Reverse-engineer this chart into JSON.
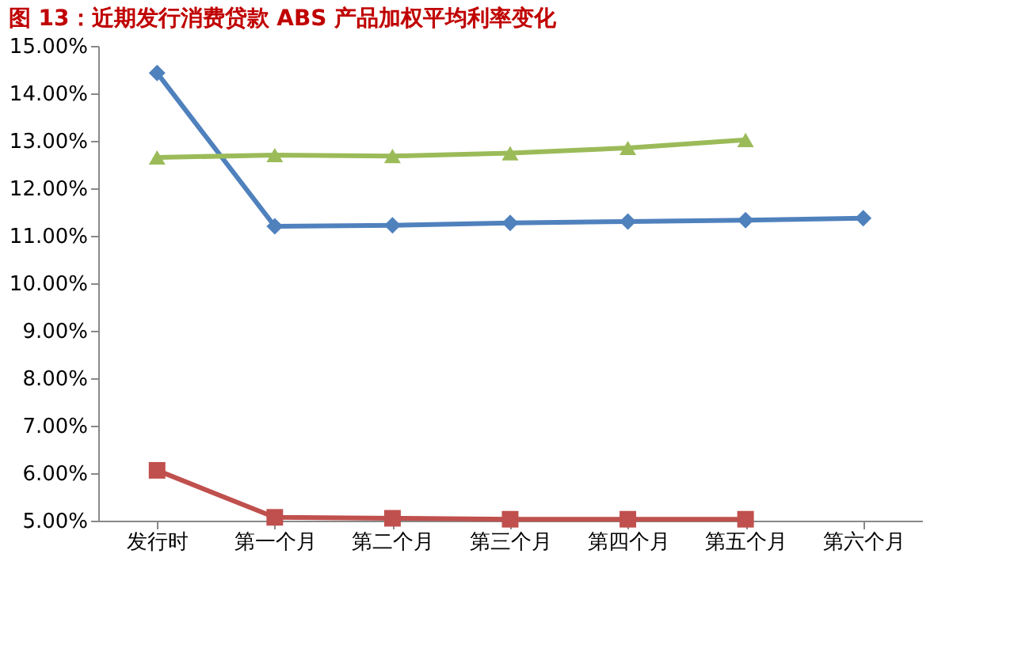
{
  "chart_data": {
    "type": "line",
    "title": "图 13：近期发行消费贷款 ABS 产品加权平均利率变化",
    "categories": [
      "发行时",
      "第一个月",
      "第二个月",
      "第三个月",
      "第四个月",
      "第五个月",
      "第六个月"
    ],
    "series": [
      {
        "color": "#4f81bd",
        "marker": "diamond",
        "values": [
          14.43,
          11.2,
          11.22,
          11.27,
          11.3,
          11.33,
          11.37
        ]
      },
      {
        "color": "#c0504d",
        "marker": "square",
        "values": [
          6.06,
          5.07,
          5.05,
          5.03,
          5.03,
          5.03,
          null
        ]
      },
      {
        "color": "#9bbb59",
        "marker": "triangle",
        "values": [
          12.65,
          12.7,
          12.68,
          12.74,
          12.85,
          13.02,
          null
        ]
      }
    ],
    "ylim": [
      5,
      15
    ],
    "yticks": [
      {
        "value": 5,
        "label": "5.00%"
      },
      {
        "value": 6,
        "label": "6.00%"
      },
      {
        "value": 7,
        "label": "7.00%"
      },
      {
        "value": 8,
        "label": "8.00%"
      },
      {
        "value": 9,
        "label": "9.00%"
      },
      {
        "value": 10,
        "label": "10.00%"
      },
      {
        "value": 11,
        "label": "11.00%"
      },
      {
        "value": 12,
        "label": "12.00%"
      },
      {
        "value": 13,
        "label": "13.00%"
      },
      {
        "value": 14,
        "label": "14.00%"
      },
      {
        "value": 15,
        "label": "15.00%"
      }
    ],
    "line_style": "solid"
  }
}
